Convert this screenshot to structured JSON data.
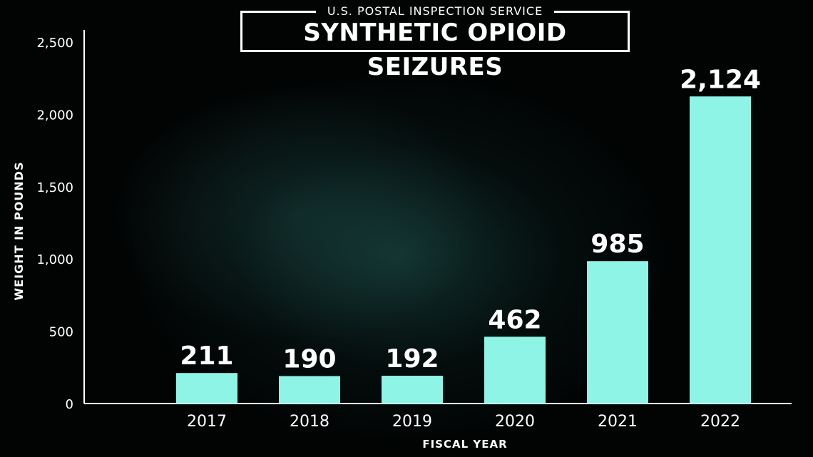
{
  "header": {
    "subtitle": "U.S. POSTAL INSPECTION SERVICE",
    "title": "SYNTHETIC OPIOID SEIZURES"
  },
  "chart_data": {
    "type": "bar",
    "title": "SYNTHETIC OPIOID SEIZURES",
    "subtitle": "U.S. POSTAL INSPECTION SERVICE",
    "xlabel": "FISCAL YEAR",
    "ylabel": "WEIGHT IN POUNDS",
    "categories": [
      "2017",
      "2018",
      "2019",
      "2020",
      "2021",
      "2022"
    ],
    "values": [
      211,
      190,
      192,
      462,
      985,
      2124
    ],
    "data_labels": [
      "211",
      "190",
      "192",
      "462",
      "985",
      "2,124"
    ],
    "yticks": [
      0,
      500,
      1000,
      1500,
      2000,
      2500
    ],
    "ytick_labels": [
      "0",
      "500",
      "1,000",
      "1,500",
      "2,000",
      "2,500"
    ],
    "ylim": [
      0,
      2500
    ],
    "grid": false,
    "bar_color": "#8ef5e6",
    "text_color": "#ffffff"
  }
}
